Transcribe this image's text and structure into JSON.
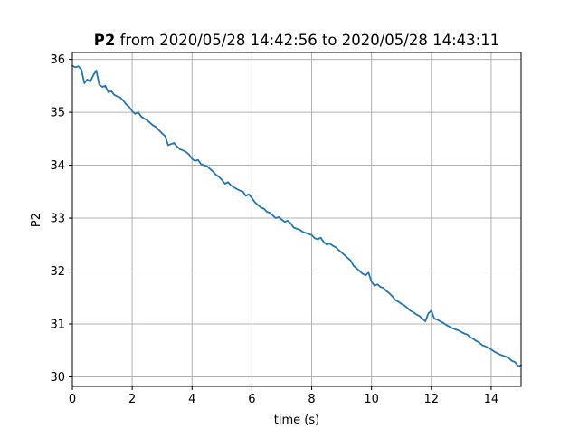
{
  "chart_data": {
    "type": "line",
    "title_bold": "P2",
    "title_rest": " from 2020/05/28 14:42:56 to 2020/05/28 14:43:11",
    "xlabel": "time (s)",
    "ylabel": "P2",
    "xlim": [
      0,
      15
    ],
    "ylim": [
      29.82,
      36.13
    ],
    "xticks": [
      0,
      2,
      4,
      6,
      8,
      10,
      12,
      14
    ],
    "yticks": [
      30,
      31,
      32,
      33,
      34,
      35,
      36
    ],
    "grid": true,
    "line_color": "#1f77b4",
    "series": [
      {
        "x": [
          0,
          0.1,
          0.2,
          0.3,
          0.4,
          0.5,
          0.6,
          0.7,
          0.8,
          0.9,
          1.0,
          1.1,
          1.2,
          1.3,
          1.4,
          1.5,
          1.6,
          1.7,
          1.8,
          1.9,
          2.0,
          2.1,
          2.2,
          2.3,
          2.4,
          2.5,
          2.6,
          2.7,
          2.8,
          2.9,
          3.0,
          3.1,
          3.2,
          3.3,
          3.4,
          3.5,
          3.6,
          3.7,
          3.8,
          3.9,
          4.0,
          4.1,
          4.2,
          4.3,
          4.4,
          4.5,
          4.6,
          4.7,
          4.8,
          4.9,
          5.0,
          5.1,
          5.2,
          5.3,
          5.4,
          5.5,
          5.6,
          5.7,
          5.8,
          5.9,
          6.0,
          6.1,
          6.2,
          6.3,
          6.4,
          6.5,
          6.6,
          6.7,
          6.8,
          6.9,
          7.0,
          7.1,
          7.2,
          7.3,
          7.4,
          7.5,
          7.6,
          7.7,
          7.8,
          7.9,
          8.0,
          8.1,
          8.2,
          8.3,
          8.4,
          8.5,
          8.6,
          8.7,
          8.8,
          8.9,
          9.0,
          9.1,
          9.2,
          9.3,
          9.4,
          9.5,
          9.6,
          9.7,
          9.8,
          9.9,
          10.0,
          10.1,
          10.2,
          10.3,
          10.4,
          10.5,
          10.6,
          10.7,
          10.8,
          10.9,
          11.0,
          11.1,
          11.2,
          11.3,
          11.4,
          11.5,
          11.6,
          11.7,
          11.8,
          11.9,
          12.0,
          12.1,
          12.2,
          12.3,
          12.4,
          12.5,
          12.6,
          12.7,
          12.8,
          12.9,
          13.0,
          13.1,
          13.2,
          13.3,
          13.4,
          13.5,
          13.6,
          13.7,
          13.8,
          13.9,
          14.0,
          14.1,
          14.2,
          14.3,
          14.4,
          14.5,
          14.6,
          14.7,
          14.8,
          14.9,
          15.0
        ],
        "y": [
          35.88,
          35.85,
          35.87,
          35.81,
          35.55,
          35.62,
          35.58,
          35.7,
          35.79,
          35.52,
          35.48,
          35.5,
          35.38,
          35.4,
          35.33,
          35.3,
          35.28,
          35.22,
          35.15,
          35.1,
          35.02,
          34.97,
          35.0,
          34.92,
          34.88,
          34.85,
          34.8,
          34.75,
          34.72,
          34.66,
          34.6,
          34.55,
          34.38,
          34.4,
          34.42,
          34.35,
          34.3,
          34.28,
          34.25,
          34.2,
          34.12,
          34.08,
          34.1,
          34.02,
          34.0,
          33.98,
          33.93,
          33.88,
          33.82,
          33.78,
          33.72,
          33.65,
          33.68,
          33.62,
          33.58,
          33.55,
          33.52,
          33.5,
          33.42,
          33.45,
          33.38,
          33.3,
          33.25,
          33.2,
          33.18,
          33.12,
          33.1,
          33.05,
          33.0,
          33.02,
          32.97,
          32.93,
          32.95,
          32.9,
          32.82,
          32.8,
          32.78,
          32.74,
          32.72,
          32.7,
          32.68,
          32.62,
          32.6,
          32.63,
          32.55,
          32.5,
          32.52,
          32.48,
          32.45,
          32.4,
          32.35,
          32.3,
          32.25,
          32.2,
          32.1,
          32.05,
          32.0,
          31.95,
          31.92,
          31.97,
          31.8,
          31.72,
          31.75,
          31.7,
          31.68,
          31.62,
          31.58,
          31.52,
          31.45,
          31.42,
          31.38,
          31.35,
          31.3,
          31.25,
          31.22,
          31.18,
          31.15,
          31.1,
          31.05,
          31.2,
          31.25,
          31.1,
          31.08,
          31.05,
          31.02,
          30.98,
          30.95,
          30.92,
          30.9,
          30.88,
          30.85,
          30.82,
          30.8,
          30.75,
          30.72,
          30.68,
          30.65,
          30.6,
          30.58,
          30.55,
          30.52,
          30.48,
          30.45,
          30.42,
          30.4,
          30.38,
          30.35,
          30.3,
          30.28,
          30.2,
          30.22
        ]
      }
    ]
  }
}
